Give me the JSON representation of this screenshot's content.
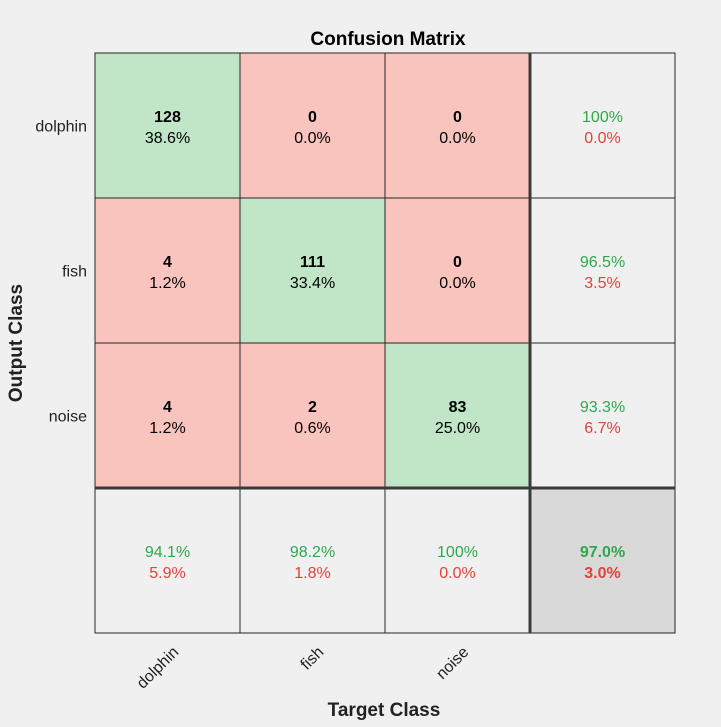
{
  "chart_data": {
    "type": "heatmap",
    "title": "Confusion Matrix",
    "xlabel": "Target Class",
    "ylabel": "Output Class",
    "classes": [
      "dolphin",
      "fish",
      "noise"
    ],
    "matrix": [
      [
        {
          "count": "128",
          "pct": "38.6%"
        },
        {
          "count": "0",
          "pct": "0.0%"
        },
        {
          "count": "0",
          "pct": "0.0%"
        }
      ],
      [
        {
          "count": "4",
          "pct": "1.2%"
        },
        {
          "count": "111",
          "pct": "33.4%"
        },
        {
          "count": "0",
          "pct": "0.0%"
        }
      ],
      [
        {
          "count": "4",
          "pct": "1.2%"
        },
        {
          "count": "2",
          "pct": "0.6%"
        },
        {
          "count": "83",
          "pct": "25.0%"
        }
      ]
    ],
    "row_summary": [
      {
        "correct": "100%",
        "incorrect": "0.0%"
      },
      {
        "correct": "96.5%",
        "incorrect": "3.5%"
      },
      {
        "correct": "93.3%",
        "incorrect": "6.7%"
      }
    ],
    "col_summary": [
      {
        "correct": "94.1%",
        "incorrect": "5.9%"
      },
      {
        "correct": "98.2%",
        "incorrect": "1.8%"
      },
      {
        "correct": "100%",
        "incorrect": "0.0%"
      }
    ],
    "total": {
      "correct": "97.0%",
      "incorrect": "3.0%"
    },
    "colors": {
      "correct_cell": "#c0e6c7",
      "incorrect_cell": "#f9c4be",
      "summary_cell": "#f0f0f0",
      "total_cell": "#d9d9d9",
      "good_text": "#2ea84a",
      "bad_text": "#e0433a",
      "background": "#f0f0f0"
    }
  }
}
